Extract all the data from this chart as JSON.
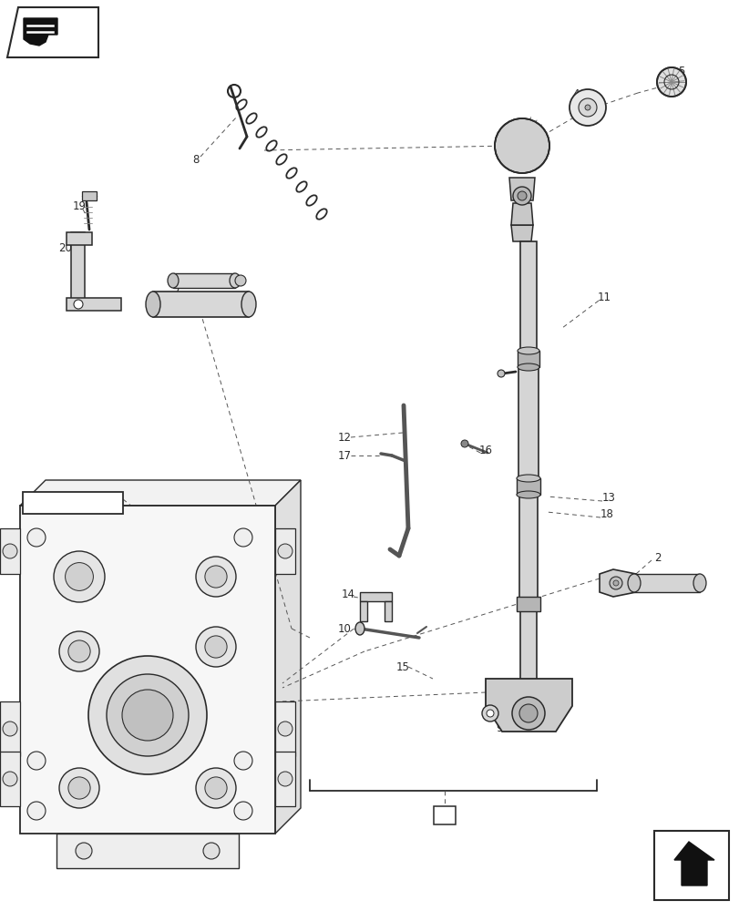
{
  "bg_color": "#ffffff",
  "line_color": "#2a2a2a",
  "dashed_color": "#555555",
  "fig_width": 8.12,
  "fig_height": 10.0,
  "dpi": 100
}
